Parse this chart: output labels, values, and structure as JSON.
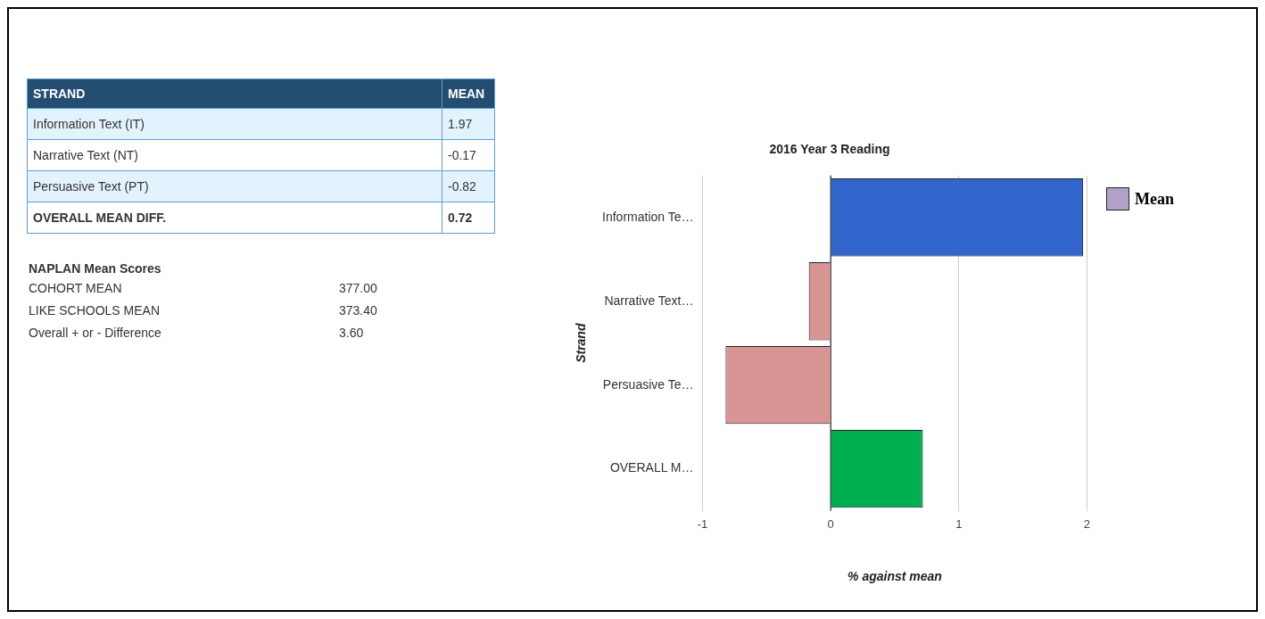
{
  "chart_data": [
    {
      "type": "other",
      "xlabel": "STRAND",
      "ylabel": "MEAN",
      "categories": [
        "Information Text (IT)",
        "Narrative Text (NT)",
        "Persuasive Text (PT)",
        "OVERALL MEAN DIFF."
      ],
      "value_labels": [
        "1.97",
        "-0.17",
        "-0.82",
        "0.72"
      ]
    },
    {
      "type": "other",
      "title": "NAPLAN Mean Scores",
      "categories": [
        "COHORT MEAN",
        "LIKE SCHOOLS MEAN",
        "Overall + or - Difference"
      ],
      "value_labels": [
        "377.00",
        "373.40",
        "3.60"
      ]
    },
    {
      "type": "bar",
      "orientation": "horizontal",
      "title": "2016 Year 3 Reading",
      "xlabel": "% against mean",
      "ylabel": "Strand",
      "categories": [
        "Information Te…",
        "Narrative Text…",
        "Persuasive Te…",
        "OVERALL M…"
      ],
      "series": [
        {
          "name": "Mean",
          "color": "#b2a2c7",
          "colors": [
            "#3366cc",
            "#d99594",
            "#d99594",
            "#00b050"
          ],
          "values": [
            1.97,
            -0.17,
            -0.82,
            0.72
          ]
        }
      ],
      "xlim": [
        -1,
        2
      ],
      "xticks": [
        -1,
        0,
        1,
        2
      ],
      "grid": "x",
      "legend": "top right"
    }
  ]
}
